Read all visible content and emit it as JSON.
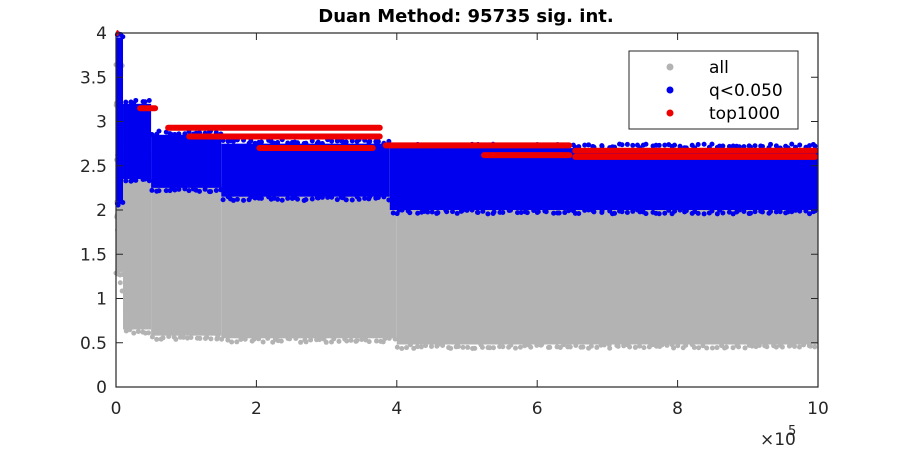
{
  "chart_data": {
    "type": "scatter",
    "title": "Duan Method: 95735 sig. int.",
    "xlabel": "",
    "ylabel": "",
    "xlim": [
      0,
      1000000
    ],
    "ylim": [
      0,
      4
    ],
    "x_ticks": [
      0,
      200000,
      400000,
      600000,
      800000,
      1000000
    ],
    "x_tick_labels": [
      "0",
      "2",
      "4",
      "6",
      "8",
      "10"
    ],
    "x_exponent_label": "×10",
    "x_exponent_power": "5",
    "y_ticks": [
      0,
      0.5,
      1,
      1.5,
      2,
      2.5,
      3,
      3.5,
      4
    ],
    "y_tick_labels": [
      "0",
      "0.5",
      "1",
      "1.5",
      "2",
      "2.5",
      "3",
      "3.5",
      "4"
    ],
    "grid": false,
    "legend_position": "top-right",
    "series": [
      {
        "name": "all",
        "color": "#b3b3b3",
        "description_bands": [
          {
            "x_from": 0,
            "x_to": 10000,
            "y_low": 1.3,
            "y_high": 3.6
          },
          {
            "x_from": 10000,
            "x_to": 50000,
            "y_low": 0.65,
            "y_high": 2.6
          },
          {
            "x_from": 50000,
            "x_to": 150000,
            "y_low": 0.58,
            "y_high": 2.3
          },
          {
            "x_from": 150000,
            "x_to": 400000,
            "y_low": 0.55,
            "y_high": 2.15
          },
          {
            "x_from": 400000,
            "x_to": 1000000,
            "y_low": 0.48,
            "y_high": 2.0
          }
        ]
      },
      {
        "name": "q<0.050",
        "color": "#0000ee",
        "description_bands": [
          {
            "x_from": 0,
            "x_to": 10000,
            "y_low": 2.1,
            "y_high": 3.95
          },
          {
            "x_from": 10000,
            "x_to": 50000,
            "y_low": 2.35,
            "y_high": 3.2
          },
          {
            "x_from": 50000,
            "x_to": 150000,
            "y_low": 2.25,
            "y_high": 2.85
          },
          {
            "x_from": 150000,
            "x_to": 390000,
            "y_low": 2.15,
            "y_high": 2.75
          },
          {
            "x_from": 390000,
            "x_to": 1000000,
            "y_low": 2.0,
            "y_high": 2.7
          }
        ]
      },
      {
        "name": "top1000",
        "color": "#ee0000",
        "points_segments": [
          {
            "x_from": 0,
            "x_to": 4000,
            "y": 4.0
          },
          {
            "x_from": 30000,
            "x_to": 60000,
            "y": 3.15
          },
          {
            "x_from": 70000,
            "x_to": 380000,
            "y": 2.93
          },
          {
            "x_from": 100000,
            "x_to": 380000,
            "y": 2.83
          },
          {
            "x_from": 200000,
            "x_to": 370000,
            "y": 2.7
          },
          {
            "x_from": 380000,
            "x_to": 650000,
            "y": 2.73
          },
          {
            "x_from": 520000,
            "x_to": 650000,
            "y": 2.62
          },
          {
            "x_from": 650000,
            "x_to": 1000000,
            "y": 2.67
          },
          {
            "x_from": 650000,
            "x_to": 1000000,
            "y": 2.6
          }
        ]
      }
    ]
  }
}
